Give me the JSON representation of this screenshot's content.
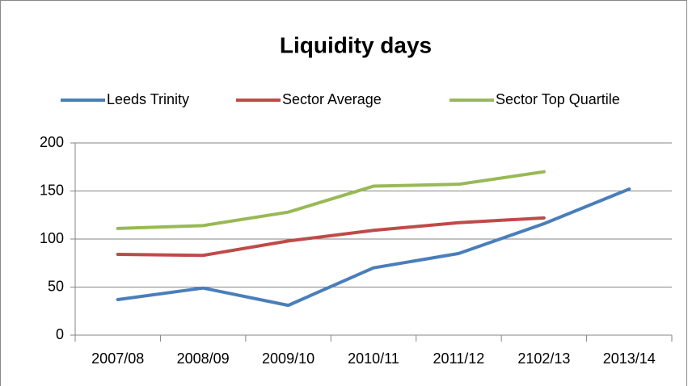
{
  "chart_data": {
    "type": "line",
    "title": "Liquidity days",
    "categories": [
      "2007/08",
      "2008/09",
      "2009/10",
      "2010/11",
      "2011/12",
      "2102/13",
      "2013/14"
    ],
    "series": [
      {
        "name": "Leeds Trinity",
        "color": "#4a7ebb",
        "values": [
          37,
          49,
          31,
          70,
          85,
          116,
          152
        ]
      },
      {
        "name": "Sector Average",
        "color": "#be4b48",
        "values": [
          84,
          83,
          98,
          109,
          117,
          122,
          null
        ]
      },
      {
        "name": "Sector Top Quartile",
        "color": "#98b954",
        "values": [
          111,
          114,
          128,
          155,
          157,
          170,
          null
        ]
      }
    ],
    "ylim": [
      0,
      200
    ],
    "yticks": [
      0,
      50,
      100,
      150,
      200
    ],
    "grid": true,
    "legend": "top"
  }
}
